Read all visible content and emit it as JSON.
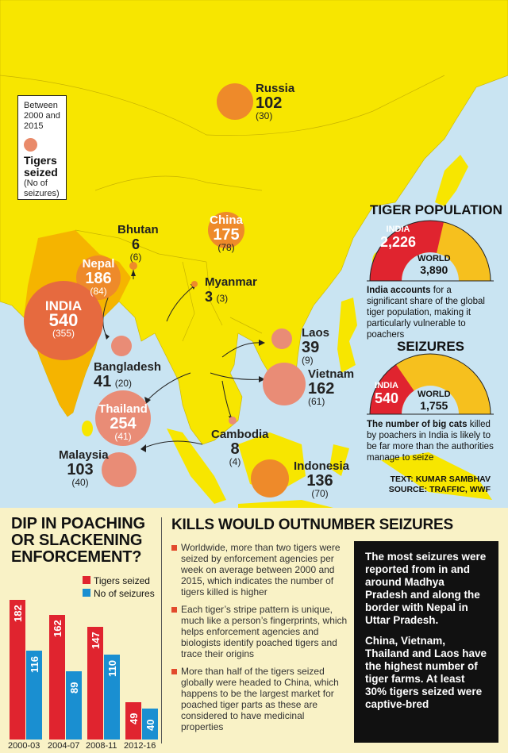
{
  "legend": {
    "line1": "Between",
    "line2": "2000 and",
    "line3": "2015",
    "title1": "Tigers",
    "title2": "seized",
    "sub1": "(No of",
    "sub2": "seizures)"
  },
  "countries": {
    "russia": {
      "name": "Russia",
      "tigers": "102",
      "seizures": "(30)"
    },
    "china": {
      "name": "China",
      "tigers": "175",
      "seizures": "(78)"
    },
    "bhutan": {
      "name": "Bhutan",
      "tigers": "6",
      "seizures": "(6)"
    },
    "nepal": {
      "name": "Nepal",
      "tigers": "186",
      "seizures": "(84)"
    },
    "india": {
      "name": "INDIA",
      "tigers": "540",
      "seizures": "(355)"
    },
    "myanmar": {
      "name": "Myanmar",
      "tigers": "3",
      "seizures": "(3)"
    },
    "bangladesh": {
      "name": "Bangladesh",
      "tigers": "41",
      "seizures": "(20)"
    },
    "laos": {
      "name": "Laos",
      "tigers": "39",
      "seizures": "(9)"
    },
    "vietnam": {
      "name": "Vietnam",
      "tigers": "162",
      "seizures": "(61)"
    },
    "thailand": {
      "name": "Thailand",
      "tigers": "254",
      "seizures": "(41)"
    },
    "cambodia": {
      "name": "Cambodia",
      "tigers": "8",
      "seizures": "(4)"
    },
    "malaysia": {
      "name": "Malaysia",
      "tigers": "103",
      "seizures": "(40)"
    },
    "indonesia": {
      "name": "Indonesia",
      "tigers": "136",
      "seizures": "(70)"
    }
  },
  "population": {
    "title": "TIGER POPULATION",
    "india_label": "INDIA",
    "india_value": "2,226",
    "india_share": 0.572,
    "world_label": "WORLD",
    "world_value": "3,890",
    "desc_bold": "India accounts",
    "desc_rest": " for a significant share of the global tiger population, making it particularly vulnerable to poachers"
  },
  "seizures": {
    "title": "SEIZURES",
    "india_label": "INDIA",
    "india_value": "540",
    "india_share": 0.308,
    "world_label": "WORLD",
    "world_value": "1,755",
    "desc_bold": "The number of big cats",
    "desc_rest": " killed by poachers in India is likely to be far more than the authorities manage to seize"
  },
  "credits": {
    "text": "TEXT: KUMAR SAMBHAV",
    "source": "SOURCE: TRAFFIC, WWF"
  },
  "chart_data": {
    "type": "bar",
    "title": "DIP IN POACHING OR SLACKENING ENFORCEMENT?",
    "categories": [
      "2000-03",
      "2004-07",
      "2008-11",
      "2012-16"
    ],
    "series": [
      {
        "name": "Tigers seized",
        "color": "#e0242f",
        "values": [
          182,
          162,
          147,
          49
        ]
      },
      {
        "name": "No of seizures",
        "color": "#1a8fd1",
        "values": [
          116,
          89,
          110,
          40
        ]
      }
    ],
    "ylim": [
      0,
      190
    ],
    "legend_position": "top-right"
  },
  "chart_title_lines": [
    "DIP IN POACHING",
    "OR SLACKENING",
    "ENFORCEMENT?"
  ],
  "kills": {
    "title": "KILLS WOULD OUTNUMBER SEIZURES",
    "bullets": [
      "Worldwide, more than two tigers were seized by enforcement agencies per week on average between 2000 and 2015, which indicates the number of tigers killed is higher",
      "Each tiger’s stripe pattern is unique, much like a person’s fingerprints, which helps enforcement agencies and biologists identify poached tigers and trace their origins",
      "More than half of the tigers seized globally were headed to China, which happens to be the largest market for poached tiger parts as these are considered to have medicinal properties"
    ]
  },
  "blackbox": {
    "p1": "The most seizures were reported from in and around Madhya Pradesh and along the border with Nepal in Uttar Pradesh.",
    "p2": "China, Vietnam, Thailand and Laos have the highest number of tiger farms. At least 30% tigers seized were captive-bred"
  },
  "colors": {
    "land": "#f7e600",
    "sea": "#c9e4f2",
    "circle_orange": "#ee8a2a",
    "circle_salmon": "#e98c76",
    "india_red": "#e0242f",
    "panel_yellow": "#f6c01e",
    "bottom_bg": "#f9f2c6"
  }
}
